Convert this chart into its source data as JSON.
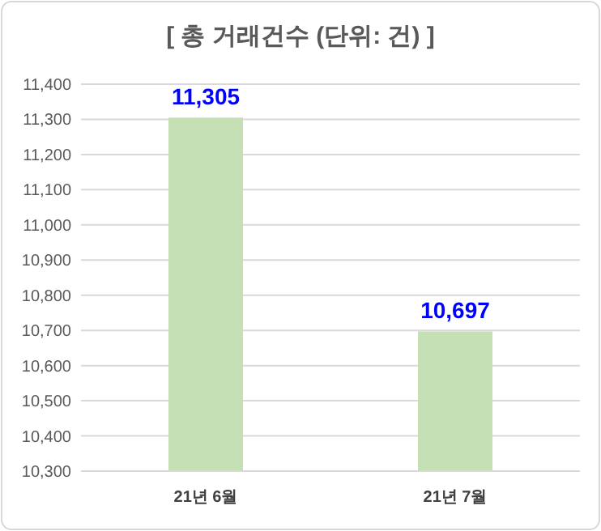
{
  "chart_data": {
    "type": "bar",
    "title": "[ 총 거래건수 (단위: 건) ]",
    "categories": [
      "21년 6월",
      "21년 7월"
    ],
    "values": [
      11305,
      10697
    ],
    "value_labels": [
      "11,305",
      "10,697"
    ],
    "color": "#c5e0b4",
    "ylim": [
      10300,
      11400
    ],
    "yticks": [
      {
        "value": 10300,
        "label": "10,300"
      },
      {
        "value": 10400,
        "label": "10,400"
      },
      {
        "value": 10500,
        "label": "10,500"
      },
      {
        "value": 10600,
        "label": "10,600"
      },
      {
        "value": 10700,
        "label": "10,700"
      },
      {
        "value": 10800,
        "label": "10,800"
      },
      {
        "value": 10900,
        "label": "10,900"
      },
      {
        "value": 11000,
        "label": "11,000"
      },
      {
        "value": 11100,
        "label": "11,100"
      },
      {
        "value": 11200,
        "label": "11,200"
      },
      {
        "value": 11300,
        "label": "11,300"
      },
      {
        "value": 11400,
        "label": "11,400"
      }
    ],
    "grid": "y"
  }
}
